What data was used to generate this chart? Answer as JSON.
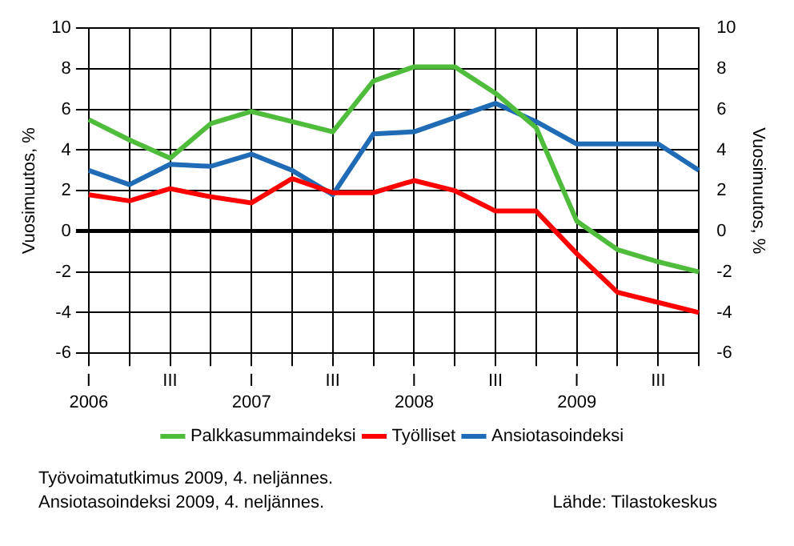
{
  "chart_data": {
    "type": "line",
    "ylabel": "Vuosimuutos, %",
    "y2label": "Vuosimuutos, %",
    "categories": [
      "I\n2006",
      null,
      "III",
      null,
      "I\n2007",
      null,
      "III",
      null,
      "I\n2008",
      null,
      "III",
      null,
      "I\n2009",
      null,
      "III",
      null
    ],
    "series": [
      {
        "name": "Palkkasummaindeksi",
        "color": "#4fbc3c",
        "values": [
          5.5,
          4.5,
          3.6,
          5.3,
          5.9,
          5.4,
          4.9,
          7.4,
          8.1,
          8.1,
          6.8,
          5.1,
          0.5,
          -0.9,
          -1.5,
          -2.0
        ]
      },
      {
        "name": "Työlliset",
        "color": "#ff0000",
        "values": [
          1.8,
          1.5,
          2.1,
          1.7,
          1.4,
          2.6,
          1.9,
          1.9,
          2.5,
          2.0,
          1.0,
          1.0,
          -1.1,
          -3.0,
          -3.5,
          -4.0
        ]
      },
      {
        "name": "Ansiotasoindeksi",
        "color": "#1f6bb5",
        "values": [
          3.0,
          2.3,
          3.3,
          3.2,
          3.8,
          3.0,
          1.8,
          4.8,
          4.9,
          5.6,
          6.3,
          5.4,
          4.3,
          4.3,
          4.3,
          3.0
        ]
      }
    ],
    "ylim": [
      -6,
      10
    ],
    "yticks": [
      -6,
      -4,
      -2,
      0,
      2,
      4,
      6,
      8,
      10
    ],
    "y2lim": [
      -6,
      10
    ],
    "y2ticks": [
      -6,
      -4,
      -2,
      0,
      2,
      4,
      6,
      8,
      10
    ],
    "grid": true,
    "legend": "bottom",
    "marker": "none",
    "line_style": "solid",
    "annotations": [
      "Työvoimatutkimus 2009, 4. neljännes.",
      "Ansiotasoindeksi 2009, 4. neljännes.",
      "Lähde: Tilastokeskus"
    ]
  }
}
